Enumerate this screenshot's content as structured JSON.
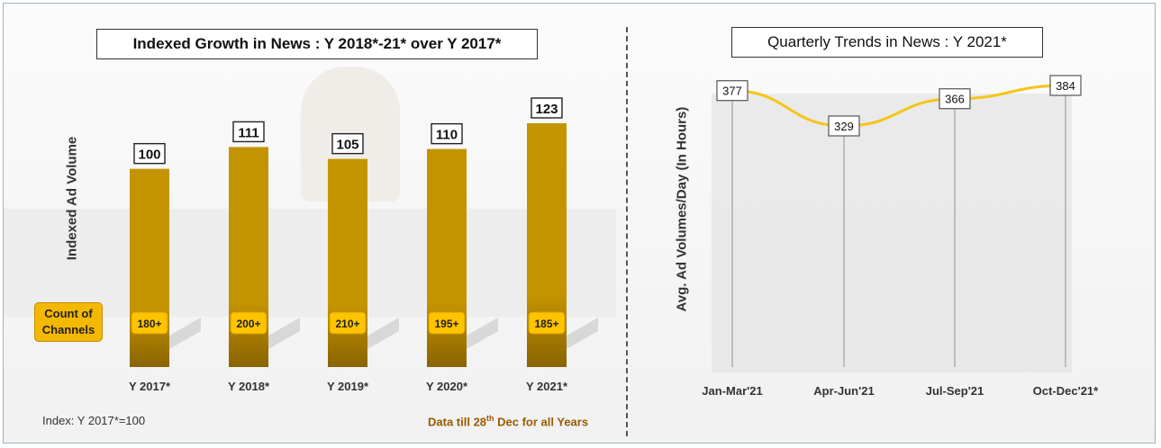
{
  "chart_data": [
    {
      "type": "bar",
      "title": "Indexed Growth in News : Y 2018*-21* over Y 2017*",
      "ylabel": "Indexed Ad Volume",
      "categories": [
        "Y 2017*",
        "Y 2018*",
        "Y 2019*",
        "Y 2020*",
        "Y 2021*"
      ],
      "values": [
        100,
        111,
        105,
        110,
        123
      ],
      "value_labels": [
        "100",
        "111",
        "105",
        "110",
        "123"
      ],
      "channel_counts_label": "Count of Channels",
      "channel_counts": [
        "180+",
        "200+",
        "210+",
        "195+",
        "185+"
      ],
      "ylim": [
        0,
        123
      ],
      "bar_color": "#c49400",
      "footnote_left": "Index: Y 2017*=100",
      "footnote_right": {
        "prefix": "Data till 28",
        "sup": "th",
        "suffix": " Dec for all Years"
      }
    },
    {
      "type": "line",
      "title": "Quarterly Trends in News : Y 2021*",
      "ylabel": "Avg. Ad Volumes/Day (In Hours)",
      "categories": [
        "Jan-Mar'21",
        "Apr-Jun'21",
        "Jul-Sep'21",
        "Oct-Dec'21*"
      ],
      "values": [
        377,
        329,
        366,
        384
      ],
      "value_labels": [
        "377",
        "329",
        "366",
        "384"
      ],
      "line_color": "#f5c518",
      "grid": false
    }
  ]
}
